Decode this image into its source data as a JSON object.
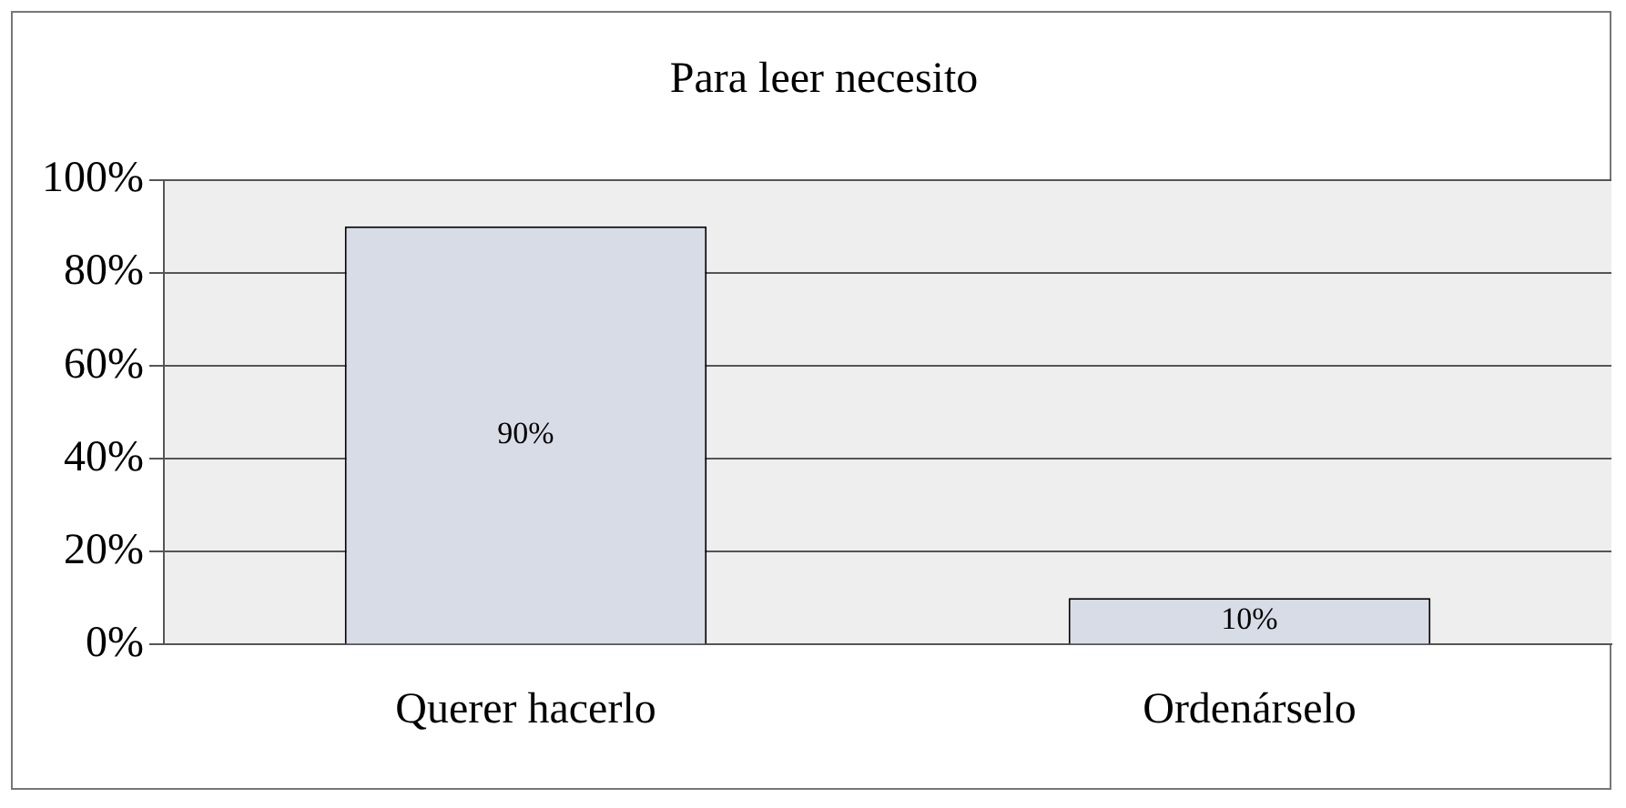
{
  "chart_data": {
    "type": "bar",
    "title": "Para leer necesito",
    "categories": [
      "Querer hacerlo",
      "Ordenárselo"
    ],
    "values": [
      90,
      10
    ],
    "color": "#d8dce6",
    "value_labels": [
      "90%",
      "10%"
    ],
    "ylim": [
      0,
      100
    ],
    "yticks": [
      {
        "value": 0,
        "label": "0%"
      },
      {
        "value": 20,
        "label": "20%"
      },
      {
        "value": 40,
        "label": "40%"
      },
      {
        "value": 60,
        "label": "60%"
      },
      {
        "value": 80,
        "label": "80%"
      },
      {
        "value": 100,
        "label": "100%"
      }
    ],
    "grid": "y",
    "legend": false
  }
}
